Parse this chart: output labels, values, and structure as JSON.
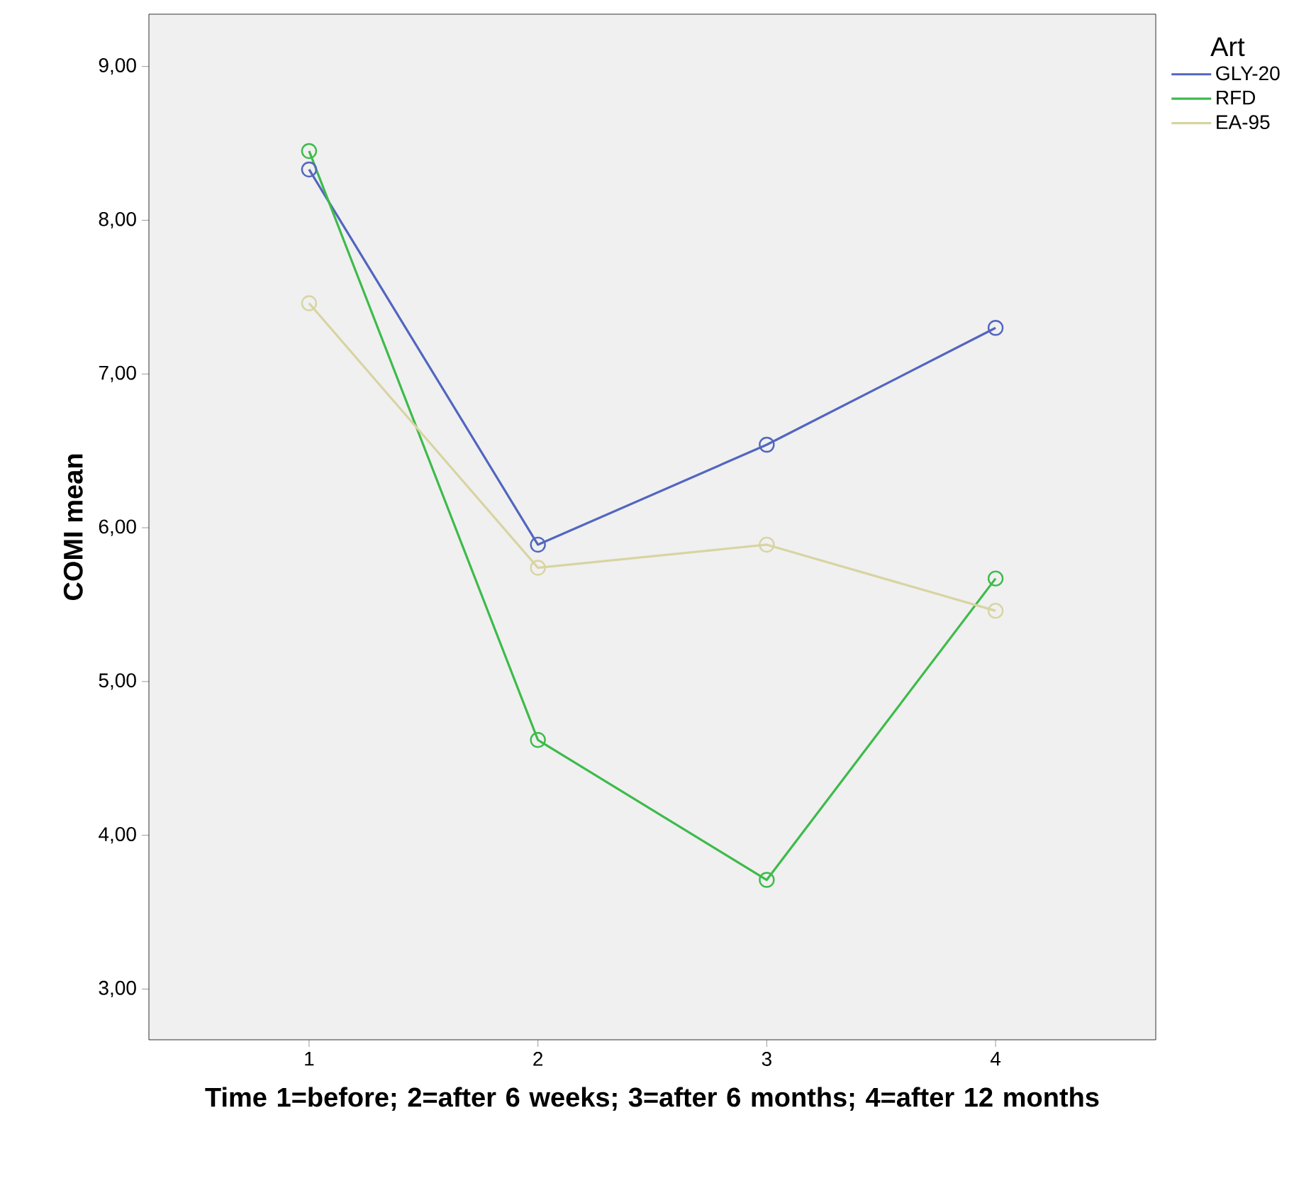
{
  "chart_data": {
    "type": "line",
    "xlabel": "Time 1=before; 2=after 6 weeks; 3=after 6 months; 4=after 12 months",
    "ylabel": "COMI mean",
    "legend_title": "Art",
    "categories": [
      "1",
      "2",
      "3",
      "4"
    ],
    "series": [
      {
        "name": "GLY-20",
        "color": "#5266c0",
        "values": [
          8.33,
          5.89,
          6.54,
          7.3
        ]
      },
      {
        "name": "RFD",
        "color": "#3dbb4a",
        "values": [
          8.45,
          4.62,
          3.71,
          5.67
        ]
      },
      {
        "name": "EA-95",
        "color": "#d8d4a2",
        "values": [
          7.46,
          5.74,
          5.89,
          5.46
        ]
      }
    ],
    "ylim": [
      2.67,
      9.34
    ],
    "yticks": [
      {
        "value": 3,
        "label": "3,00"
      },
      {
        "value": 4,
        "label": "4,00"
      },
      {
        "value": 5,
        "label": "5,00"
      },
      {
        "value": 6,
        "label": "6,00"
      },
      {
        "value": 7,
        "label": "7,00"
      },
      {
        "value": 8,
        "label": "8,00"
      },
      {
        "value": 9,
        "label": "9,00"
      }
    ],
    "marker": "circle",
    "line_style": "solid",
    "grid": false,
    "legend": "top right"
  }
}
